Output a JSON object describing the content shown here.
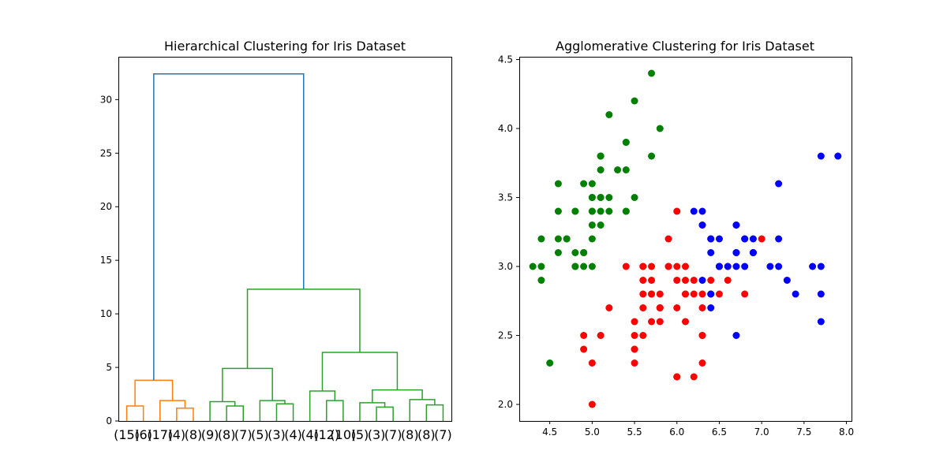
{
  "chart_data": [
    {
      "type": "dendrogram",
      "title": "Hierarchical Clustering for Iris Dataset",
      "ylim": [
        0,
        34
      ],
      "yticks": [
        0,
        5,
        10,
        15,
        20,
        25,
        30
      ],
      "leaf_labels": [
        "(15)",
        "(6)",
        "(17)",
        "(4)",
        "(8)",
        "(9)",
        "(8)",
        "(7)",
        "(5)",
        "(3)",
        "(4)",
        "(4)",
        "(12)",
        "(10)",
        "(5)",
        "(3)",
        "(7)",
        "(8)",
        "(8)",
        "(7)"
      ],
      "colors": {
        "root": "#1f77b4",
        "cluster_a": "#ff7f0e",
        "cluster_b": "#2ca02c"
      },
      "links": [
        {
          "left": 0,
          "right": 1,
          "height": 1.4,
          "color": "cluster_a"
        },
        {
          "left": 3,
          "right": 4,
          "height": 1.2,
          "color": "cluster_a"
        },
        {
          "left": 2,
          "right": "n2",
          "height": 1.9,
          "color": "cluster_a",
          "id": "n3"
        },
        {
          "left": "n1",
          "right": "n3",
          "height": 3.8,
          "color": "cluster_a",
          "id": "n4"
        },
        {
          "left": 6,
          "right": 7,
          "height": 1.4,
          "color": "cluster_b",
          "id": "n5"
        },
        {
          "left": 5,
          "right": "n5",
          "height": 1.8,
          "color": "cluster_b",
          "id": "n6"
        },
        {
          "left": 9,
          "right": 10,
          "height": 1.6,
          "color": "cluster_b",
          "id": "n7"
        },
        {
          "left": 8,
          "right": "n7",
          "height": 1.9,
          "color": "cluster_b",
          "id": "n8"
        },
        {
          "left": "n6",
          "right": "n8",
          "height": 4.9,
          "color": "cluster_b",
          "id": "n9"
        },
        {
          "left": 12,
          "right": 13,
          "height": 1.9,
          "color": "cluster_b",
          "id": "n10"
        },
        {
          "left": 11,
          "right": "n10",
          "height": 2.8,
          "color": "cluster_b",
          "id": "n11"
        },
        {
          "left": 15,
          "right": 16,
          "height": 1.3,
          "color": "cluster_b",
          "id": "n12"
        },
        {
          "left": 14,
          "right": "n12",
          "height": 1.7,
          "color": "cluster_b",
          "id": "n13"
        },
        {
          "left": 18,
          "right": 19,
          "height": 1.5,
          "color": "cluster_b",
          "id": "n14"
        },
        {
          "left": 17,
          "right": "n14",
          "height": 2.0,
          "color": "cluster_b",
          "id": "n15"
        },
        {
          "left": "n13",
          "right": "n15",
          "height": 2.9,
          "color": "cluster_b",
          "id": "n16"
        },
        {
          "left": "n11",
          "right": "n16",
          "height": 6.4,
          "color": "cluster_b",
          "id": "n17"
        },
        {
          "left": "n9",
          "right": "n17",
          "height": 12.3,
          "color": "cluster_b",
          "id": "n18"
        },
        {
          "left": "n4",
          "right": "n18",
          "height": 32.4,
          "color": "root",
          "id": "n19"
        }
      ]
    },
    {
      "type": "scatter",
      "title": "Agglomerative Clustering for Iris Dataset",
      "xlim": [
        4.14,
        8.06
      ],
      "ylim": [
        1.88,
        4.52
      ],
      "xticks": [
        4.5,
        5.0,
        5.5,
        6.0,
        6.5,
        7.0,
        7.5,
        8.0
      ],
      "yticks": [
        2.0,
        2.5,
        3.0,
        3.5,
        4.0,
        4.5
      ],
      "series": [
        {
          "color": "#008000",
          "points": [
            [
              5.1,
              3.5
            ],
            [
              4.9,
              3.0
            ],
            [
              4.7,
              3.2
            ],
            [
              4.6,
              3.1
            ],
            [
              5.0,
              3.6
            ],
            [
              5.4,
              3.9
            ],
            [
              4.6,
              3.4
            ],
            [
              5.0,
              3.4
            ],
            [
              4.4,
              2.9
            ],
            [
              4.9,
              3.1
            ],
            [
              5.4,
              3.7
            ],
            [
              4.8,
              3.4
            ],
            [
              4.8,
              3.0
            ],
            [
              4.3,
              3.0
            ],
            [
              5.8,
              4.0
            ],
            [
              5.7,
              4.4
            ],
            [
              5.4,
              3.9
            ],
            [
              5.1,
              3.5
            ],
            [
              5.7,
              3.8
            ],
            [
              5.1,
              3.8
            ],
            [
              5.4,
              3.4
            ],
            [
              5.1,
              3.7
            ],
            [
              4.6,
              3.6
            ],
            [
              5.1,
              3.3
            ],
            [
              4.8,
              3.4
            ],
            [
              5.0,
              3.0
            ],
            [
              5.0,
              3.4
            ],
            [
              5.2,
              3.5
            ],
            [
              5.2,
              3.4
            ],
            [
              4.7,
              3.2
            ],
            [
              4.8,
              3.1
            ],
            [
              5.4,
              3.4
            ],
            [
              5.2,
              4.1
            ],
            [
              5.5,
              4.2
            ],
            [
              4.9,
              3.1
            ],
            [
              5.0,
              3.2
            ],
            [
              5.5,
              3.5
            ],
            [
              4.9,
              3.6
            ],
            [
              4.4,
              3.0
            ],
            [
              5.1,
              3.4
            ],
            [
              5.0,
              3.5
            ],
            [
              4.5,
              2.3
            ],
            [
              4.4,
              3.2
            ],
            [
              5.0,
              3.5
            ],
            [
              5.1,
              3.8
            ],
            [
              4.8,
              3.0
            ],
            [
              5.1,
              3.8
            ],
            [
              4.6,
              3.2
            ],
            [
              5.3,
              3.7
            ],
            [
              5.0,
              3.3
            ]
          ]
        },
        {
          "color": "#ff0000",
          "points": [
            [
              7.0,
              3.2
            ],
            [
              5.5,
              2.3
            ],
            [
              6.5,
              2.8
            ],
            [
              5.7,
              2.8
            ],
            [
              6.3,
              3.3
            ],
            [
              4.9,
              2.4
            ],
            [
              6.6,
              2.9
            ],
            [
              5.2,
              2.7
            ],
            [
              5.0,
              2.0
            ],
            [
              5.9,
              3.0
            ],
            [
              6.0,
              2.2
            ],
            [
              6.1,
              2.9
            ],
            [
              5.6,
              2.9
            ],
            [
              5.6,
              3.0
            ],
            [
              5.8,
              2.7
            ],
            [
              6.2,
              2.2
            ],
            [
              5.6,
              2.5
            ],
            [
              5.9,
              3.2
            ],
            [
              6.1,
              2.8
            ],
            [
              6.3,
              2.5
            ],
            [
              6.1,
              2.8
            ],
            [
              6.4,
              2.9
            ],
            [
              6.6,
              3.0
            ],
            [
              6.8,
              2.8
            ],
            [
              6.0,
              2.9
            ],
            [
              5.7,
              2.6
            ],
            [
              5.5,
              2.4
            ],
            [
              5.5,
              2.4
            ],
            [
              5.8,
              2.7
            ],
            [
              6.0,
              2.7
            ],
            [
              5.4,
              3.0
            ],
            [
              6.0,
              3.4
            ],
            [
              6.3,
              2.3
            ],
            [
              5.6,
              3.0
            ],
            [
              5.5,
              2.5
            ],
            [
              5.5,
              2.6
            ],
            [
              6.1,
              3.0
            ],
            [
              5.8,
              2.6
            ],
            [
              5.0,
              2.3
            ],
            [
              5.6,
              2.7
            ],
            [
              5.7,
              3.0
            ],
            [
              5.7,
              2.9
            ],
            [
              6.2,
              2.9
            ],
            [
              5.1,
              2.5
            ],
            [
              5.7,
              2.8
            ],
            [
              4.9,
              2.5
            ],
            [
              5.8,
              2.8
            ],
            [
              6.0,
              3.0
            ],
            [
              6.3,
              2.7
            ],
            [
              6.1,
              2.6
            ],
            [
              5.6,
              2.8
            ],
            [
              6.2,
              2.8
            ],
            [
              6.3,
              2.8
            ],
            [
              6.0,
              2.2
            ],
            [
              5.8,
              2.7
            ],
            [
              5.9,
              3.0
            ],
            [
              6.3,
              2.5
            ]
          ]
        },
        {
          "color": "#0000ff",
          "points": [
            [
              6.4,
              3.2
            ],
            [
              6.9,
              3.1
            ],
            [
              6.7,
              3.1
            ],
            [
              6.4,
              2.8
            ],
            [
              6.3,
              3.3
            ],
            [
              7.1,
              3.0
            ],
            [
              6.5,
              3.0
            ],
            [
              7.6,
              3.0
            ],
            [
              7.3,
              2.9
            ],
            [
              6.7,
              2.5
            ],
            [
              7.2,
              3.6
            ],
            [
              6.5,
              3.2
            ],
            [
              6.4,
              2.7
            ],
            [
              6.8,
              3.0
            ],
            [
              6.4,
              3.2
            ],
            [
              6.5,
              3.0
            ],
            [
              7.7,
              3.8
            ],
            [
              7.7,
              2.6
            ],
            [
              6.9,
              3.2
            ],
            [
              7.7,
              2.8
            ],
            [
              6.7,
              3.3
            ],
            [
              7.2,
              3.2
            ],
            [
              6.2,
              3.4
            ],
            [
              7.2,
              3.0
            ],
            [
              7.4,
              2.8
            ],
            [
              7.9,
              3.8
            ],
            [
              6.3,
              3.4
            ],
            [
              6.4,
              3.1
            ],
            [
              6.9,
              3.1
            ],
            [
              6.7,
              3.1
            ],
            [
              6.9,
              3.1
            ],
            [
              6.8,
              3.2
            ],
            [
              6.7,
              3.3
            ],
            [
              6.7,
              3.0
            ],
            [
              6.5,
              3.0
            ],
            [
              6.3,
              2.9
            ],
            [
              7.7,
              3.0
            ],
            [
              6.6,
              3.0
            ],
            [
              6.8,
              3.2
            ],
            [
              6.4,
              2.8
            ]
          ]
        }
      ]
    }
  ]
}
